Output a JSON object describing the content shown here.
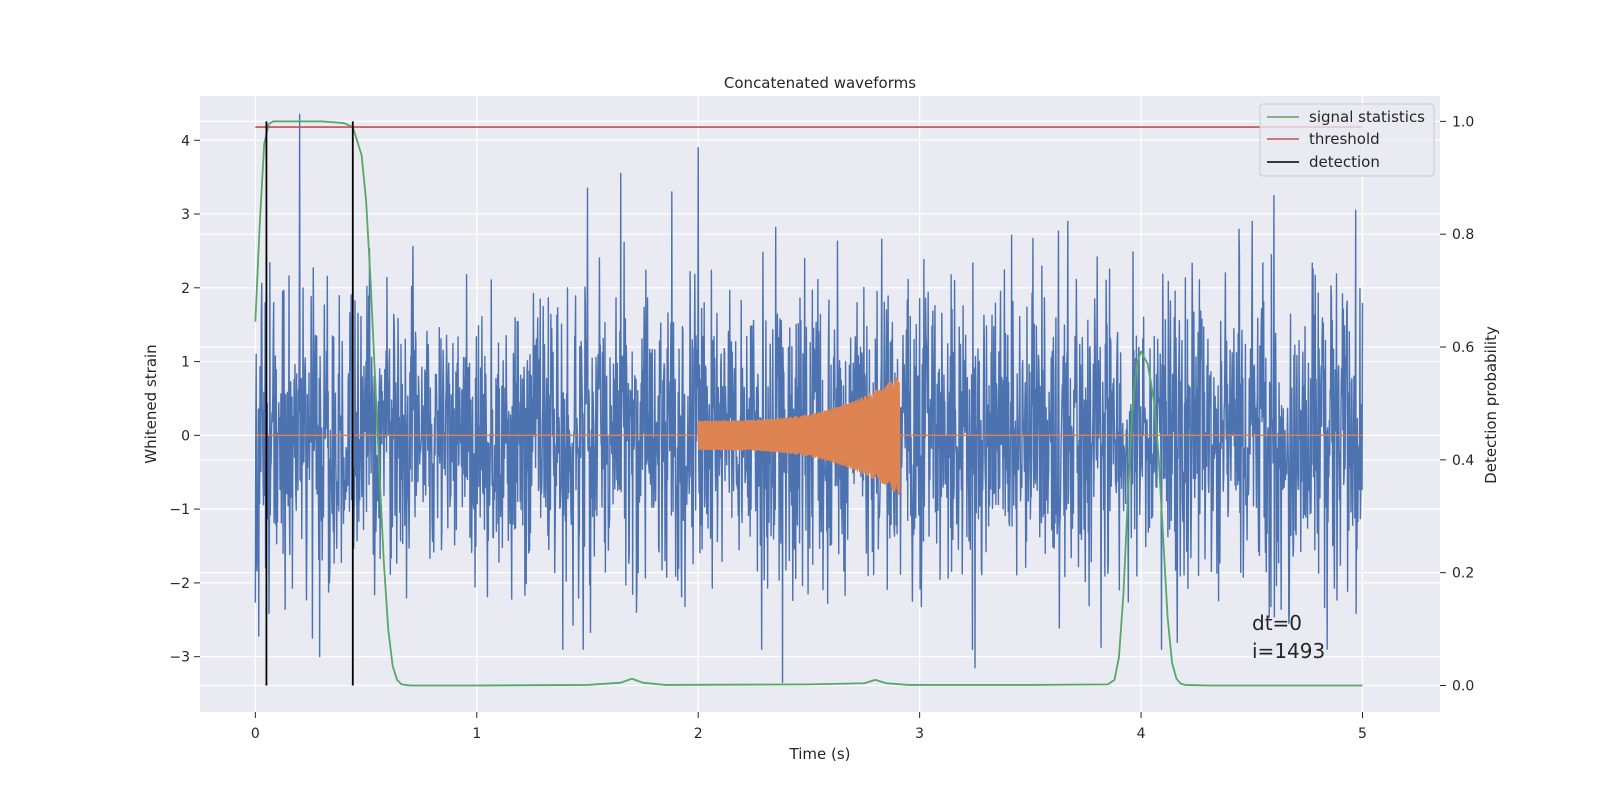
{
  "chart_data": {
    "type": "line",
    "title": "Concatenated waveforms",
    "xlabel": "Time (s)",
    "ylabel": "Whitened strain",
    "y2label": "Detection probability",
    "xlim": [
      -0.25,
      5.35
    ],
    "ylim": [
      -3.75,
      4.6
    ],
    "y2lim": [
      -0.047,
      1.045
    ],
    "xticks": [
      0,
      1,
      2,
      3,
      4,
      5
    ],
    "xticklabels": [
      "0",
      "1",
      "2",
      "3",
      "4",
      "5"
    ],
    "yticks": [
      -3,
      -2,
      -1,
      0,
      1,
      2,
      3,
      4
    ],
    "yticklabels": [
      "−3",
      "−2",
      "−1",
      "0",
      "1",
      "2",
      "3",
      "4"
    ],
    "y2ticks": [
      0.0,
      0.2,
      0.4,
      0.6,
      0.8,
      1.0
    ],
    "y2ticklabels": [
      "0.0",
      "0.2",
      "0.4",
      "0.6",
      "0.8",
      "1.0"
    ],
    "grid": true,
    "legend_position": "top-right",
    "colors": {
      "strain": "#4c72b0",
      "injection": "#dd8452",
      "signal_statistics": "#55a868",
      "threshold": "#c44e52",
      "detection": "#000000",
      "axes_bg": "#eaeaf2",
      "grid": "#ffffff"
    },
    "series": [
      {
        "name": "",
        "role": "whitened strain noise",
        "axis": "left",
        "x_range": [
          0,
          5
        ],
        "typical_amplitude": 1.4,
        "peaks": [
          {
            "x": 0.2,
            "y": 4.35
          },
          {
            "x": 1.5,
            "y": 3.35
          },
          {
            "x": 1.65,
            "y": 3.55
          },
          {
            "x": 1.88,
            "y": 3.3
          },
          {
            "x": 2.0,
            "y": 3.9
          },
          {
            "x": 2.38,
            "y": -3.35
          },
          {
            "x": 3.25,
            "y": -3.15
          },
          {
            "x": 4.6,
            "y": 3.25
          },
          {
            "x": 4.97,
            "y": 3.05
          },
          {
            "x": 0.29,
            "y": -3.0
          }
        ]
      },
      {
        "name": "",
        "role": "injected chirp",
        "axis": "left",
        "x_range": [
          2.0,
          2.91
        ],
        "start_amplitude": 0.2,
        "peak_amplitude": 0.82
      },
      {
        "name": "signal statistics",
        "axis": "right",
        "x": [
          0.0,
          0.02,
          0.04,
          0.06,
          0.08,
          0.12,
          0.2,
          0.3,
          0.4,
          0.44,
          0.48,
          0.5,
          0.52,
          0.54,
          0.56,
          0.58,
          0.6,
          0.62,
          0.64,
          0.66,
          0.7,
          0.8,
          1.0,
          1.5,
          1.65,
          1.7,
          1.75,
          1.85,
          2.5,
          2.75,
          2.8,
          2.85,
          2.95,
          3.5,
          3.85,
          3.88,
          3.9,
          3.92,
          3.94,
          3.96,
          3.98,
          4.0,
          4.03,
          4.06,
          4.08,
          4.1,
          4.12,
          4.14,
          4.16,
          4.18,
          4.2,
          4.3,
          5.0
        ],
        "values": [
          0.645,
          0.82,
          0.96,
          0.995,
          1.0,
          1.0,
          1.0,
          1.0,
          0.997,
          0.99,
          0.94,
          0.86,
          0.72,
          0.55,
          0.38,
          0.22,
          0.1,
          0.035,
          0.01,
          0.002,
          0.0,
          0.0,
          0.0,
          0.001,
          0.005,
          0.012,
          0.005,
          0.001,
          0.002,
          0.004,
          0.01,
          0.004,
          0.001,
          0.001,
          0.002,
          0.01,
          0.05,
          0.16,
          0.33,
          0.48,
          0.57,
          0.592,
          0.57,
          0.5,
          0.4,
          0.26,
          0.12,
          0.04,
          0.012,
          0.003,
          0.001,
          0.0,
          0.0
        ]
      },
      {
        "name": "threshold",
        "axis": "right",
        "x": [
          0,
          5
        ],
        "values": [
          0.99,
          0.99
        ]
      },
      {
        "name": "detection",
        "axis": "right",
        "x": [
          0.05,
          0.44
        ],
        "y_span": [
          0.0,
          1.0
        ]
      }
    ],
    "annotations": [
      "dt=0",
      "i=1493"
    ]
  }
}
